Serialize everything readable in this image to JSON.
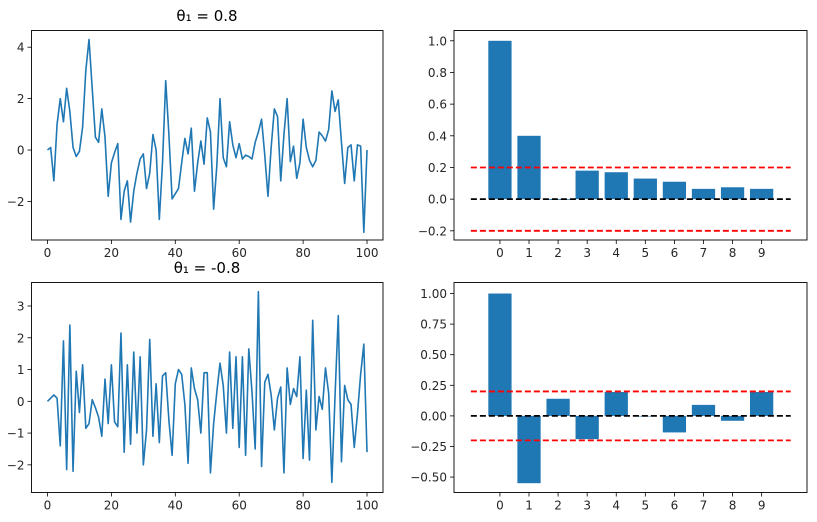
{
  "chart_data": [
    {
      "type": "line",
      "title": "θ₁ = 0.8",
      "xlim": [
        -5,
        105
      ],
      "ylim": [
        -3.5,
        4.65
      ],
      "xticks": [
        0,
        20,
        40,
        60,
        80,
        100
      ],
      "yticks": [
        -2,
        0,
        2,
        4
      ],
      "color": "#1f77b4",
      "grid": false,
      "y": [
        0,
        0.1,
        -1.2,
        1.0,
        2.0,
        1.1,
        2.4,
        1.5,
        0.1,
        -0.25,
        -0.05,
        0.9,
        3.1,
        4.3,
        2.4,
        0.5,
        0.3,
        1.6,
        0.5,
        -1.8,
        -0.5,
        -0.1,
        0.25,
        -2.7,
        -1.6,
        -1.2,
        -2.8,
        -1.6,
        -0.9,
        -0.35,
        -0.15,
        -1.5,
        -0.9,
        0.6,
        0,
        -2.7,
        -0.5,
        2.7,
        0.6,
        -1.9,
        -1.7,
        -1.5,
        -0.5,
        0.45,
        -0.15,
        0.85,
        -1.6,
        -0.5,
        0.35,
        -0.55,
        1.25,
        0.7,
        -2.3,
        -0.6,
        2.0,
        -0.3,
        -0.65,
        1.1,
        0.2,
        -0.3,
        0.25,
        -0.35,
        -0.2,
        -0.25,
        -0.35,
        0.3,
        0.7,
        1.2,
        -0.2,
        -1.8,
        0.1,
        1.6,
        1.3,
        -1.2,
        0.6,
        2.0,
        -0.45,
        0.15,
        -1.1,
        -0.5,
        1.2,
        0.1,
        -0.4,
        -0.65,
        -0.4,
        0.7,
        0.55,
        0.35,
        0.8,
        2.3,
        1.5,
        1.95,
        0.3,
        -1.3,
        0.1,
        0.2,
        -1.2,
        0.2,
        0.15,
        -3.2,
        0.0
      ]
    },
    {
      "type": "bar",
      "categories": [
        0,
        1,
        2,
        3,
        4,
        5,
        6,
        7,
        8,
        9
      ],
      "values": [
        1.0,
        0.4,
        -0.005,
        0.18,
        0.17,
        0.13,
        0.11,
        0.065,
        0.075,
        0.065
      ],
      "xlim": [
        -1.58,
        10.56
      ],
      "ylim": [
        -0.258,
        1.065
      ],
      "yticks": [
        "-0.2",
        "0.0",
        "0.2",
        "0.4",
        "0.6",
        "0.8",
        "1.0"
      ],
      "color": "#1f77b4",
      "reference_lines": [
        {
          "y": 0.2,
          "color": "#ff0000",
          "style": "dashed",
          "xrange": [
            -1,
            10
          ]
        },
        {
          "y": -0.2,
          "color": "#ff0000",
          "style": "dashed",
          "xrange": [
            -1,
            10
          ]
        },
        {
          "y": 0,
          "color": "#000000",
          "style": "dashed",
          "xrange": [
            -1,
            10
          ]
        }
      ],
      "grid": false
    },
    {
      "type": "line",
      "title": "θ₁ = -0.8",
      "xlim": [
        -5,
        105
      ],
      "ylim": [
        -2.87,
        3.74
      ],
      "xticks": [
        0,
        20,
        40,
        60,
        80,
        100
      ],
      "yticks": [
        -2,
        -1,
        0,
        1,
        2,
        3
      ],
      "color": "#1f77b4",
      "grid": false,
      "y": [
        0,
        0.1,
        0.2,
        0.1,
        -1.4,
        1.9,
        -2.15,
        2.4,
        -2.2,
        0.95,
        -0.35,
        1.15,
        -0.85,
        -0.7,
        0.05,
        -0.2,
        -0.5,
        -1.1,
        0.7,
        -0.7,
        1.15,
        -0.65,
        -0.8,
        2.15,
        -1.6,
        1.15,
        -1.35,
        1.55,
        -1.0,
        1.4,
        -2.0,
        -0.9,
        1.95,
        -1.1,
        0.55,
        -1.3,
        0.8,
        0.9,
        -0.6,
        -1.7,
        0.55,
        1.0,
        0.85,
        -0.1,
        -1.95,
        1.05,
        0.4,
        0.05,
        -1.0,
        0.9,
        0.9,
        -2.25,
        -0.7,
        0.3,
        1.2,
        0.5,
        -1.0,
        1.55,
        -0.85,
        1.4,
        -1.45,
        1.4,
        -1.7,
        1.65,
        0.3,
        -1.5,
        3.45,
        -2.05,
        0.6,
        0.85,
        0.2,
        -0.9,
        0.1,
        0.45,
        -2.25,
        1.05,
        -0.1,
        0.4,
        0.15,
        1.4,
        -1.8,
        0.35,
        -1.85,
        2.55,
        -0.9,
        0.15,
        -0.25,
        1.05,
        0.25,
        -2.55,
        0.2,
        2.7,
        -1.9,
        0.5,
        0.05,
        -0.1,
        -1.45,
        -0.4,
        0.85,
        1.8,
        -1.6
      ]
    },
    {
      "type": "bar",
      "categories": [
        0,
        1,
        2,
        3,
        4,
        5,
        6,
        7,
        8,
        9
      ],
      "values": [
        1.0,
        -0.55,
        0.14,
        -0.19,
        0.195,
        -0.005,
        -0.135,
        0.09,
        -0.04,
        0.195
      ],
      "xlim": [
        -1.58,
        10.56
      ],
      "ylim": [
        -0.626,
        1.09
      ],
      "yticks": [
        "-0.50",
        "-0.25",
        "0.00",
        "0.25",
        "0.50",
        "0.75",
        "1.00"
      ],
      "color": "#1f77b4",
      "reference_lines": [
        {
          "y": 0.2,
          "color": "#ff0000",
          "style": "dashed",
          "xrange": [
            -1,
            10
          ]
        },
        {
          "y": -0.2,
          "color": "#ff0000",
          "style": "dashed",
          "xrange": [
            -1,
            10
          ]
        },
        {
          "y": 0,
          "color": "#000000",
          "style": "dashed",
          "xrange": [
            -1,
            10
          ]
        }
      ],
      "grid": false
    }
  ]
}
